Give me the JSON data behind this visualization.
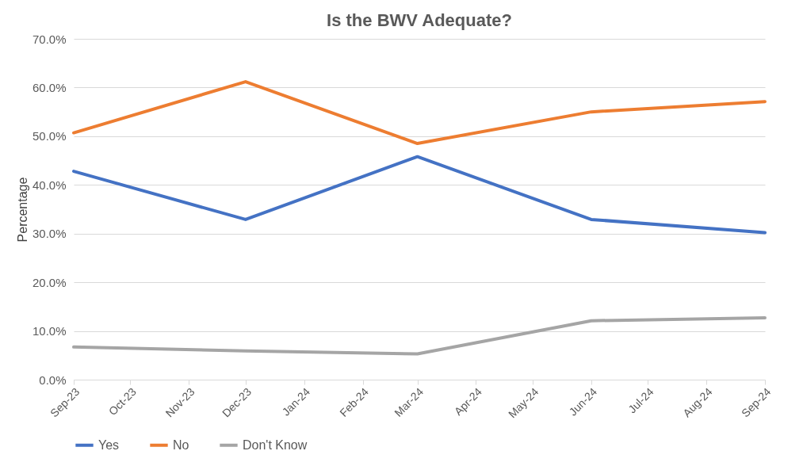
{
  "chart_data": {
    "type": "line",
    "title": "Is the BWV Adequate?",
    "ylabel": "Percentage",
    "x": [
      "2023-09",
      "2023-12",
      "2024-03",
      "2024-06",
      "2024-09"
    ],
    "xlim": [
      "2023-09",
      "2024-09"
    ],
    "xticks": [
      {
        "value": "2023-09",
        "label": "Sep-23"
      },
      {
        "value": "2023-10",
        "label": "Oct-23"
      },
      {
        "value": "2023-11",
        "label": "Nov-23"
      },
      {
        "value": "2023-12",
        "label": "Dec-23"
      },
      {
        "value": "2024-01",
        "label": "Jan-24"
      },
      {
        "value": "2024-02",
        "label": "Feb-24"
      },
      {
        "value": "2024-03",
        "label": "Mar-24"
      },
      {
        "value": "2024-04",
        "label": "Apr-24"
      },
      {
        "value": "2024-05",
        "label": "May-24"
      },
      {
        "value": "2024-06",
        "label": "Jun-24"
      },
      {
        "value": "2024-07",
        "label": "Jul-24"
      },
      {
        "value": "2024-08",
        "label": "Aug-24"
      },
      {
        "value": "2024-09",
        "label": "Sep-24"
      }
    ],
    "ylim": [
      0,
      70
    ],
    "yticks": [
      {
        "value": 0,
        "label": "0.0%"
      },
      {
        "value": 10,
        "label": "10.0%"
      },
      {
        "value": 20,
        "label": "20.0%"
      },
      {
        "value": 30,
        "label": "30.0%"
      },
      {
        "value": 40,
        "label": "40.0%"
      },
      {
        "value": 50,
        "label": "50.0%"
      },
      {
        "value": 60,
        "label": "60.0%"
      },
      {
        "value": 70,
        "label": "70.0%"
      }
    ],
    "series": [
      {
        "name": "Yes",
        "color": "#4472c4",
        "values": [
          42.8,
          32.9,
          45.8,
          32.9,
          30.2
        ]
      },
      {
        "name": "No",
        "color": "#ed7d31",
        "values": [
          50.7,
          61.2,
          48.5,
          55.0,
          57.1
        ]
      },
      {
        "name": "Don't Know",
        "color": "#a5a5a5",
        "values": [
          6.7,
          5.9,
          5.3,
          12.1,
          12.7
        ]
      }
    ],
    "grid": "y",
    "legend": "bottom",
    "marker": "none",
    "line_style": "solid"
  }
}
